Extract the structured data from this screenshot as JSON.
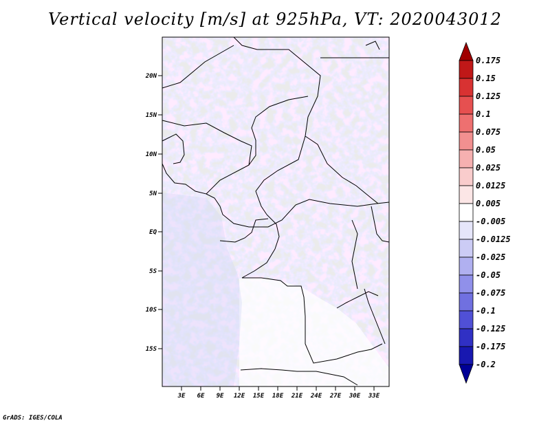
{
  "title": "Vertical velocity [m/s] at 925hPa, VT: 2020043012",
  "credit": "GrADS: IGES/COLA",
  "map": {
    "lat_ticks": [
      "20N",
      "15N",
      "10N",
      "5N",
      "EQ",
      "5S",
      "10S",
      "15S"
    ],
    "lon_ticks": [
      "3E",
      "6E",
      "9E",
      "12E",
      "15E",
      "18E",
      "21E",
      "24E",
      "27E",
      "30E",
      "33E"
    ]
  },
  "colorbar": {
    "labels": [
      "0.175",
      "0.15",
      "0.125",
      "0.1",
      "0.075",
      "0.05",
      "0.025",
      "0.0125",
      "0.005",
      "-0.005",
      "-0.0125",
      "-0.025",
      "-0.05",
      "-0.075",
      "-0.1",
      "-0.125",
      "-0.175",
      "-0.2"
    ],
    "colors": [
      "#a00000",
      "#c01818",
      "#d83232",
      "#e65050",
      "#ee7070",
      "#f29090",
      "#f6b0b0",
      "#f9cccc",
      "#fce6e6",
      "#ffffff",
      "#e6e6fa",
      "#ccccf5",
      "#b0b0f0",
      "#9090ea",
      "#7070e0",
      "#5050d6",
      "#3030c4",
      "#1818b0",
      "#000096"
    ]
  }
}
